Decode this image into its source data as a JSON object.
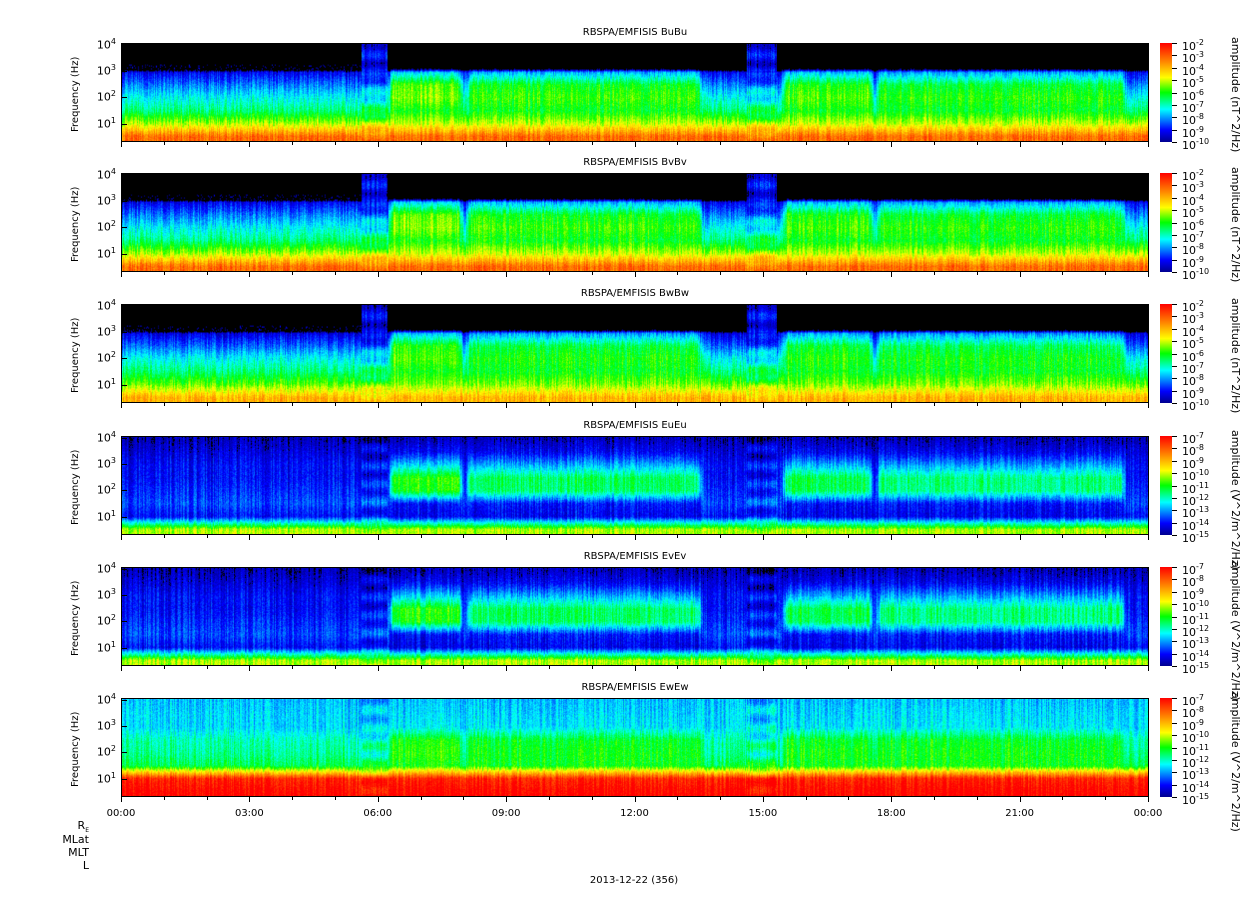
{
  "chart_data": {
    "type": "heatmap",
    "date_label": "2013-12-22 (356)",
    "x_ticks": [
      "00:00",
      "03:00",
      "06:00",
      "09:00",
      "12:00",
      "15:00",
      "18:00",
      "21:00",
      "00:00"
    ],
    "x_range_hours": [
      0,
      24
    ],
    "ylabel": "Frequency (Hz)",
    "y_scale": "log",
    "y_range_hz": [
      2,
      12000
    ],
    "y_ticks": [
      {
        "base": "10",
        "exp": "1"
      },
      {
        "base": "10",
        "exp": "2"
      },
      {
        "base": "10",
        "exp": "3"
      },
      {
        "base": "10",
        "exp": "4"
      }
    ],
    "ephemeris_labels": [
      "R",
      "MLat",
      "MLT",
      "L"
    ],
    "ephemeris_sub": "E",
    "activity_intervals_hours": [
      [
        6.2,
        8.0,
        1.0
      ],
      [
        8.0,
        13.6,
        0.8
      ],
      [
        15.4,
        17.6,
        0.85
      ],
      [
        17.6,
        23.5,
        0.75
      ]
    ],
    "perigee_intervals_hours": [
      [
        5.6,
        6.2
      ],
      [
        14.6,
        15.3
      ]
    ],
    "panels": [
      {
        "title": "RBSPA/EMFISIS  BuBu",
        "cb_title": "amplitude (nT^2/Hz)",
        "cb_exps": [
          "-2",
          "-3",
          "-4",
          "-5",
          "-6",
          "-7",
          "-8",
          "-9",
          "-10"
        ],
        "quiet": [
          0.85,
          0.6,
          0.42,
          0.33,
          0.22,
          0.1,
          -1,
          -1
        ],
        "active": [
          0.85,
          0.62,
          0.5,
          0.58,
          0.55,
          0.3,
          -1,
          -1
        ]
      },
      {
        "title": "RBSPA/EMFISIS  BvBv",
        "cb_title": "amplitude (nT^2/Hz)",
        "cb_exps": [
          "-2",
          "-3",
          "-4",
          "-5",
          "-6",
          "-7",
          "-8",
          "-9",
          "-10"
        ],
        "quiet": [
          0.85,
          0.6,
          0.42,
          0.33,
          0.22,
          0.1,
          -1,
          -1
        ],
        "active": [
          0.85,
          0.62,
          0.5,
          0.58,
          0.55,
          0.3,
          -1,
          -1
        ]
      },
      {
        "title": "RBSPA/EMFISIS  BwBw",
        "cb_title": "amplitude (nT^2/Hz)",
        "cb_exps": [
          "-2",
          "-3",
          "-4",
          "-5",
          "-6",
          "-7",
          "-8",
          "-9",
          "-10"
        ],
        "quiet": [
          0.75,
          0.55,
          0.42,
          0.33,
          0.2,
          0.08,
          -1,
          -1
        ],
        "active": [
          0.75,
          0.58,
          0.5,
          0.55,
          0.52,
          0.28,
          -1,
          -1
        ]
      },
      {
        "title": "RBSPA/EMFISIS  EuEu",
        "cb_title": "amplitude (V^2/m^2/Hz)",
        "cb_exps": [
          "-7",
          "-8",
          "-9",
          "-10",
          "-11",
          "-12",
          "-13",
          "-14",
          "-15"
        ],
        "quiet": [
          0.6,
          0.12,
          0.18,
          0.15,
          0.12,
          0.12,
          0.08,
          0.04
        ],
        "active": [
          0.6,
          0.1,
          0.12,
          0.5,
          0.52,
          0.3,
          0.12,
          0.05
        ]
      },
      {
        "title": "RBSPA/EMFISIS  EvEv",
        "cb_title": "amplitude (V^2/m^2/Hz)",
        "cb_exps": [
          "-7",
          "-8",
          "-9",
          "-10",
          "-11",
          "-12",
          "-13",
          "-14",
          "-15"
        ],
        "quiet": [
          0.6,
          0.12,
          0.18,
          0.15,
          0.12,
          0.12,
          0.08,
          0.04
        ],
        "active": [
          0.6,
          0.1,
          0.12,
          0.5,
          0.52,
          0.3,
          0.12,
          0.05
        ]
      },
      {
        "title": "RBSPA/EMFISIS  EwEw",
        "cb_title": "amplitude (V^2/m^2/Hz)",
        "cb_exps": [
          "-7",
          "-8",
          "-9",
          "-10",
          "-11",
          "-12",
          "-13",
          "-14",
          "-15"
        ],
        "quiet": [
          1.0,
          0.95,
          0.45,
          0.4,
          0.38,
          0.3,
          0.3,
          0.28
        ],
        "active": [
          1.0,
          0.95,
          0.5,
          0.52,
          0.5,
          0.32,
          0.3,
          0.28
        ]
      }
    ]
  }
}
